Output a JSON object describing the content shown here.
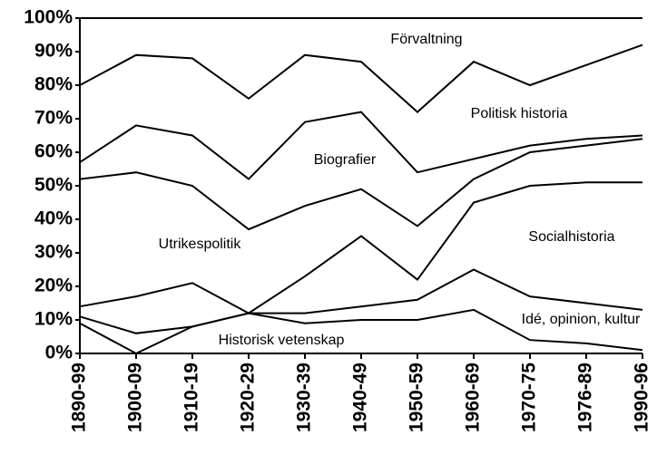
{
  "chart_data": {
    "type": "stacked_line",
    "categories": [
      "1890-99",
      "1900-09",
      "1910-19",
      "1920-29",
      "1930-39",
      "1940-49",
      "1950-59",
      "1960-69",
      "1970-75",
      "1976-89",
      "1990-96"
    ],
    "series": [
      {
        "name": "Historisk vetenskap",
        "color": "#000000",
        "values": [
          9,
          0,
          8,
          12,
          9,
          10,
          10,
          13,
          4,
          3,
          1
        ]
      },
      {
        "name": "Idé, opinion, kultur",
        "color": "#000000",
        "values": [
          2,
          6,
          0,
          0,
          3,
          4,
          6,
          12,
          13,
          12,
          12
        ]
      },
      {
        "name": "Socialhistoria",
        "color": "#000000",
        "values": [
          3,
          11,
          13,
          0,
          11,
          21,
          6,
          20,
          33,
          36,
          38
        ]
      },
      {
        "name": "Utrikespolitik",
        "color": "#000000",
        "values": [
          38,
          37,
          29,
          25,
          21,
          14,
          16,
          7,
          10,
          11,
          13
        ]
      },
      {
        "name": "Biografier",
        "color": "#000000",
        "values": [
          5,
          14,
          15,
          15,
          25,
          23,
          16,
          6,
          2,
          2,
          1
        ]
      },
      {
        "name": "Politisk historia",
        "color": "#000000",
        "values": [
          23,
          21,
          23,
          24,
          20,
          15,
          18,
          29,
          18,
          22,
          27
        ]
      },
      {
        "name": "Förvaltning",
        "color": "#000000",
        "values": [
          20,
          11,
          12,
          24,
          11,
          13,
          28,
          13,
          20,
          14,
          8
        ]
      }
    ],
    "ylim": [
      0,
      100
    ],
    "yticks": [
      {
        "value": 0,
        "label": "0%"
      },
      {
        "value": 10,
        "label": "10%"
      },
      {
        "value": 20,
        "label": "20%"
      },
      {
        "value": 30,
        "label": "30%"
      },
      {
        "value": 40,
        "label": "40%"
      },
      {
        "value": 50,
        "label": "50%"
      },
      {
        "value": 60,
        "label": "60%"
      },
      {
        "value": 70,
        "label": "70%"
      },
      {
        "value": 80,
        "label": "80%"
      },
      {
        "value": 90,
        "label": "90%"
      },
      {
        "value": 100,
        "label": "100%"
      }
    ],
    "grid": false
  }
}
